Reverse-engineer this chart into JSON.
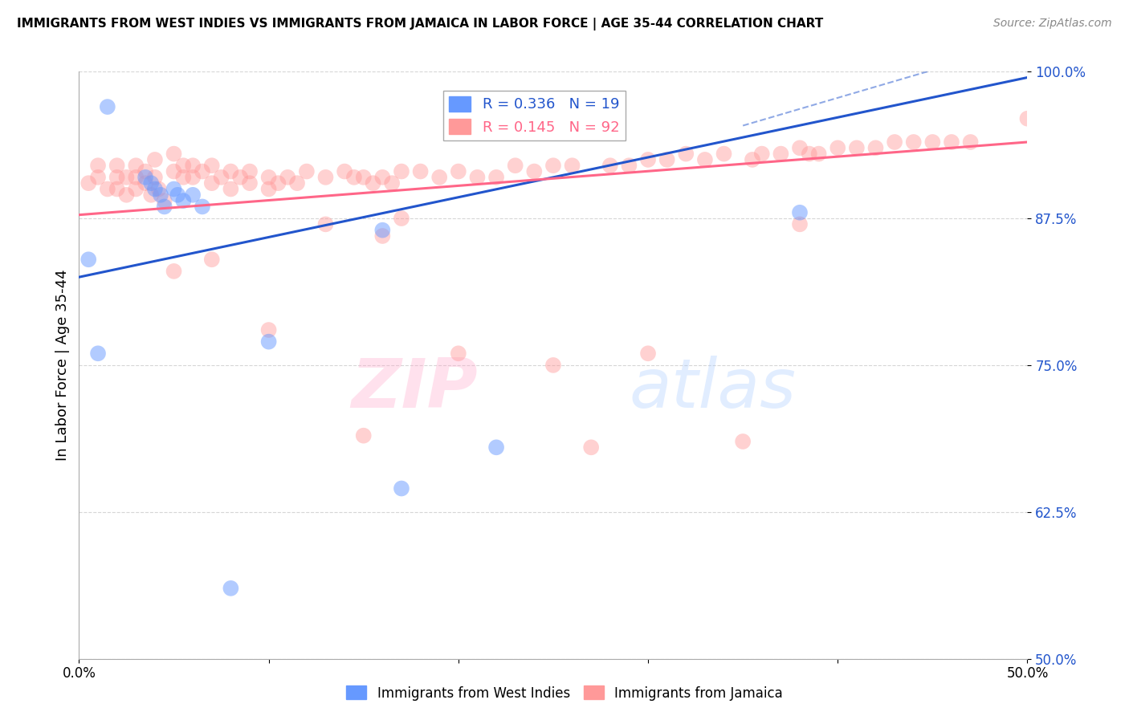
{
  "title": "IMMIGRANTS FROM WEST INDIES VS IMMIGRANTS FROM JAMAICA IN LABOR FORCE | AGE 35-44 CORRELATION CHART",
  "source": "Source: ZipAtlas.com",
  "xlabel_blue": "Immigrants from West Indies",
  "xlabel_pink": "Immigrants from Jamaica",
  "ylabel": "In Labor Force | Age 35-44",
  "xmin": 0.0,
  "xmax": 0.5,
  "ymin": 0.5,
  "ymax": 1.0,
  "yticks": [
    0.5,
    0.625,
    0.75,
    0.875,
    1.0
  ],
  "ytick_labels": [
    "50.0%",
    "62.5%",
    "75.0%",
    "87.5%",
    "100.0%"
  ],
  "xticks": [
    0.0,
    0.1,
    0.2,
    0.3,
    0.4,
    0.5
  ],
  "xtick_labels": [
    "0.0%",
    "",
    "",
    "",
    "",
    "50.0%"
  ],
  "legend_blue_r": "R = 0.336",
  "legend_blue_n": "N = 19",
  "legend_pink_r": "R = 0.145",
  "legend_pink_n": "N = 92",
  "blue_color": "#6699FF",
  "pink_color": "#FF9999",
  "blue_line_color": "#2255CC",
  "pink_line_color": "#FF6688",
  "watermark_zip": "ZIP",
  "watermark_atlas": "atlas",
  "blue_scatter_x": [
    0.015,
    0.035,
    0.038,
    0.04,
    0.043,
    0.045,
    0.05,
    0.052,
    0.055,
    0.06,
    0.065,
    0.005,
    0.01,
    0.16,
    0.17,
    0.38,
    0.22,
    0.1,
    0.08
  ],
  "blue_scatter_y": [
    0.97,
    0.91,
    0.905,
    0.9,
    0.895,
    0.885,
    0.9,
    0.895,
    0.89,
    0.895,
    0.885,
    0.84,
    0.76,
    0.865,
    0.645,
    0.88,
    0.68,
    0.77,
    0.56
  ],
  "pink_scatter_x": [
    0.005,
    0.01,
    0.01,
    0.015,
    0.02,
    0.02,
    0.02,
    0.025,
    0.025,
    0.03,
    0.03,
    0.03,
    0.035,
    0.035,
    0.038,
    0.04,
    0.04,
    0.042,
    0.045,
    0.05,
    0.05,
    0.055,
    0.055,
    0.06,
    0.06,
    0.065,
    0.07,
    0.07,
    0.075,
    0.08,
    0.08,
    0.085,
    0.09,
    0.09,
    0.1,
    0.1,
    0.105,
    0.11,
    0.115,
    0.12,
    0.13,
    0.14,
    0.145,
    0.15,
    0.155,
    0.16,
    0.165,
    0.17,
    0.18,
    0.19,
    0.2,
    0.21,
    0.22,
    0.23,
    0.24,
    0.25,
    0.26,
    0.28,
    0.29,
    0.3,
    0.31,
    0.32,
    0.33,
    0.34,
    0.355,
    0.36,
    0.37,
    0.38,
    0.385,
    0.39,
    0.4,
    0.41,
    0.42,
    0.43,
    0.44,
    0.45,
    0.46,
    0.3,
    0.07,
    0.16,
    0.2,
    0.38,
    0.47,
    0.1,
    0.05,
    0.15,
    0.25,
    0.35,
    0.5,
    0.13,
    0.17,
    0.27
  ],
  "pink_scatter_y": [
    0.905,
    0.92,
    0.91,
    0.9,
    0.92,
    0.91,
    0.9,
    0.91,
    0.895,
    0.92,
    0.91,
    0.9,
    0.915,
    0.905,
    0.895,
    0.925,
    0.91,
    0.9,
    0.89,
    0.93,
    0.915,
    0.92,
    0.91,
    0.92,
    0.91,
    0.915,
    0.92,
    0.905,
    0.91,
    0.915,
    0.9,
    0.91,
    0.915,
    0.905,
    0.91,
    0.9,
    0.905,
    0.91,
    0.905,
    0.915,
    0.91,
    0.915,
    0.91,
    0.91,
    0.905,
    0.91,
    0.905,
    0.915,
    0.915,
    0.91,
    0.915,
    0.91,
    0.91,
    0.92,
    0.915,
    0.92,
    0.92,
    0.92,
    0.92,
    0.925,
    0.925,
    0.93,
    0.925,
    0.93,
    0.925,
    0.93,
    0.93,
    0.935,
    0.93,
    0.93,
    0.935,
    0.935,
    0.935,
    0.94,
    0.94,
    0.94,
    0.94,
    0.76,
    0.84,
    0.86,
    0.76,
    0.87,
    0.94,
    0.78,
    0.83,
    0.69,
    0.75,
    0.685,
    0.96,
    0.87,
    0.875,
    0.68
  ],
  "blue_trendline_x": [
    0.0,
    0.5
  ],
  "blue_trendline_y": [
    0.825,
    0.995
  ],
  "pink_trendline_x": [
    0.0,
    0.5
  ],
  "pink_trendline_y": [
    0.878,
    0.94
  ]
}
